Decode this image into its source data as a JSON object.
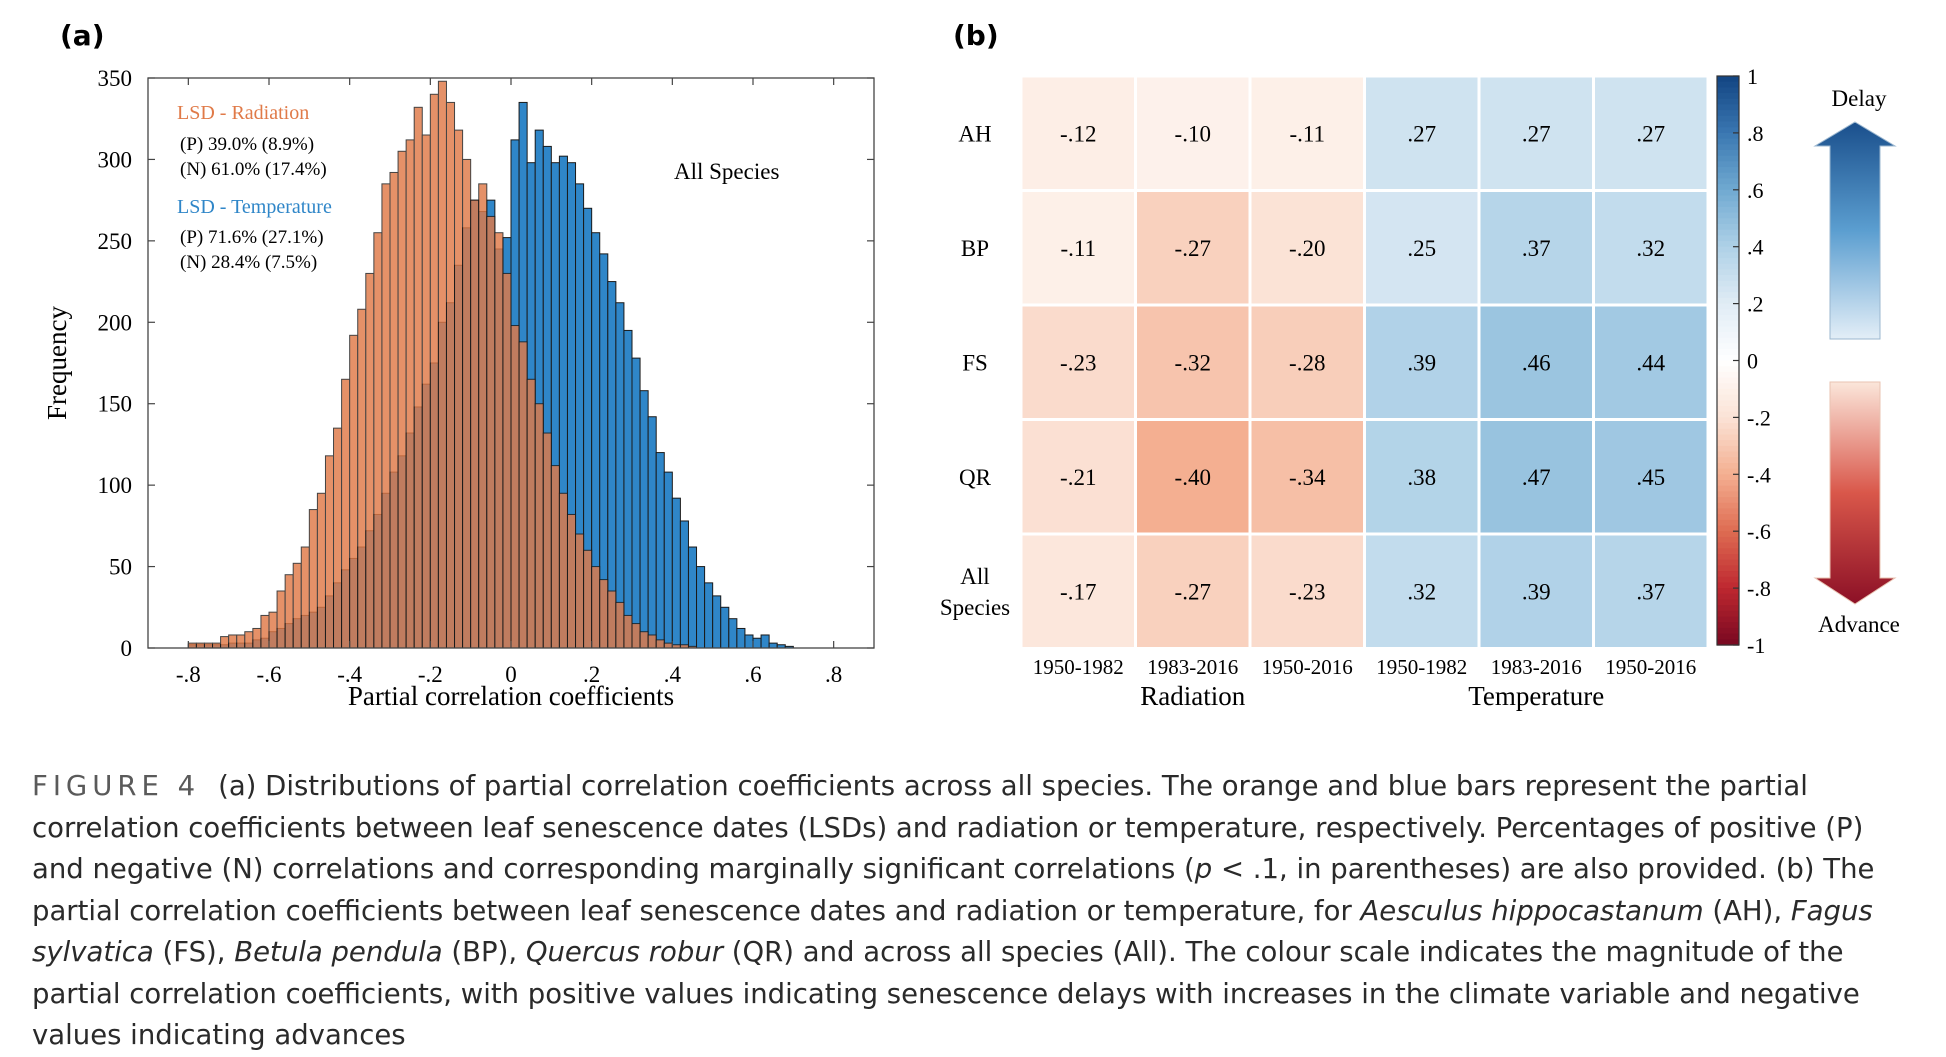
{
  "panel_a": {
    "label": "(a)",
    "annotation": "All Species",
    "legend": [
      {
        "title": "LSD - Radiation",
        "color": "#e07a48",
        "lines": [
          "(P) 39.0% (8.9%)",
          "(N) 61.0% (17.4%)"
        ]
      },
      {
        "title": "LSD - Temperature",
        "color": "#2f86c8",
        "lines": [
          "(P) 71.6% (27.1%)",
          "(N) 28.4% (7.5%)"
        ]
      }
    ]
  },
  "panel_b": {
    "label": "(b)",
    "arrow_up_label": "Delay",
    "arrow_down_label": "Advance",
    "colorbar_ticks": [
      "1",
      ".8",
      ".6",
      ".4",
      ".2",
      "0",
      "-.2",
      "-.4",
      "-.6",
      "-.8",
      "-1"
    ]
  },
  "caption": {
    "figure_label": "FIGURE 4",
    "seg1": "(a) Distributions of partial correlation coefficients across all species. The orange and blue bars represent the partial correlation coefficients between leaf senescence dates (LSDs) and radiation or temperature, respectively. Percentages of positive (P) and negative (N) correlations and corresponding marginally significant correlations (",
    "p_symbol": "p",
    "seg2": " < .1, in parentheses) are also provided. (b) The partial correlation coefficients between leaf senescence dates and radiation or temperature, for ",
    "sp_ah": "Aesculus hippocastanum",
    "seg3": " (AH), ",
    "sp_fs": "Fagus sylvatica",
    "seg4": " (FS), ",
    "sp_bp": "Betula pendula",
    "seg5": " (BP), ",
    "sp_qr": "Quercus robur",
    "seg6": " (QR) and across all species (All). The colour scale indicates the magnitude of the partial correlation coefficients, with positive values indicating senescence delays with increases in the climate variable and negative values indicating advances"
  },
  "chart_data": [
    {
      "type": "bar",
      "subtype": "histogram",
      "xlabel": "Partial correlation coefficients",
      "ylabel": "Frequency",
      "xlim": [
        -0.9,
        0.9
      ],
      "ylim": [
        0,
        350
      ],
      "xticks": [
        -0.8,
        -0.6,
        -0.4,
        -0.2,
        0,
        0.2,
        0.4,
        0.6,
        0.8
      ],
      "xtick_labels": [
        "-.8",
        "-.6",
        "-.4",
        "-.2",
        "0",
        ".2",
        ".4",
        ".6",
        ".8"
      ],
      "yticks": [
        0,
        50,
        100,
        150,
        200,
        250,
        300,
        350
      ],
      "bin_width": 0.02,
      "series": [
        {
          "name": "LSD - Radiation",
          "color": "#e07a48",
          "bin_start": -0.8,
          "counts": [
            3,
            3,
            3,
            3,
            7,
            8,
            8,
            10,
            12,
            20,
            22,
            35,
            45,
            52,
            62,
            85,
            95,
            118,
            135,
            165,
            192,
            208,
            230,
            255,
            285,
            292,
            305,
            312,
            332,
            315,
            340,
            348,
            335,
            318,
            300,
            275,
            285,
            265,
            255,
            230,
            198,
            188,
            165,
            150,
            132,
            112,
            95,
            82,
            70,
            60,
            50,
            42,
            35,
            28,
            20,
            15,
            10,
            8,
            5,
            3,
            2,
            2,
            1
          ]
        },
        {
          "name": "LSD - Temperature",
          "color": "#2f86c8",
          "bin_start": -0.8,
          "counts": [
            2,
            2,
            2,
            2,
            2,
            3,
            3,
            3,
            5,
            6,
            10,
            12,
            15,
            18,
            20,
            22,
            25,
            32,
            40,
            48,
            55,
            62,
            72,
            82,
            95,
            108,
            118,
            132,
            148,
            162,
            175,
            200,
            212,
            235,
            258,
            275,
            268,
            275,
            245,
            252,
            312,
            335,
            298,
            318,
            308,
            298,
            302,
            298,
            285,
            270,
            255,
            242,
            225,
            212,
            195,
            178,
            158,
            142,
            120,
            108,
            92,
            78,
            62,
            50,
            40,
            32,
            25,
            18,
            12,
            8,
            6,
            8,
            3,
            2,
            1
          ]
        }
      ]
    },
    {
      "type": "heatmap",
      "rows": [
        "AH",
        "BP",
        "FS",
        "QR",
        "All Species"
      ],
      "columns": [
        "1950-1982",
        "1983-2016",
        "1950-2016",
        "1950-1982",
        "1983-2016",
        "1950-2016"
      ],
      "column_groups": [
        {
          "name": "Radiation",
          "columns": [
            0,
            1,
            2
          ]
        },
        {
          "name": "Temperature",
          "columns": [
            3,
            4,
            5
          ]
        }
      ],
      "values": [
        [
          -0.12,
          -0.1,
          -0.11,
          0.27,
          0.27,
          0.27
        ],
        [
          -0.11,
          -0.27,
          -0.2,
          0.25,
          0.37,
          0.32
        ],
        [
          -0.23,
          -0.32,
          -0.28,
          0.39,
          0.46,
          0.44
        ],
        [
          -0.21,
          -0.4,
          -0.34,
          0.38,
          0.47,
          0.45
        ],
        [
          -0.17,
          -0.27,
          -0.23,
          0.32,
          0.39,
          0.37
        ]
      ],
      "value_labels": [
        [
          "-.12",
          "-.10",
          "-.11",
          ".27",
          ".27",
          ".27"
        ],
        [
          "-.11",
          "-.27",
          "-.20",
          ".25",
          ".37",
          ".32"
        ],
        [
          "-.23",
          "-.32",
          "-.28",
          ".39",
          ".46",
          ".44"
        ],
        [
          "-.21",
          "-.40",
          "-.34",
          ".38",
          ".47",
          ".45"
        ],
        [
          "-.17",
          "-.27",
          "-.23",
          ".32",
          ".39",
          ".37"
        ]
      ],
      "colorbar_range": [
        -1,
        1
      ]
    }
  ]
}
